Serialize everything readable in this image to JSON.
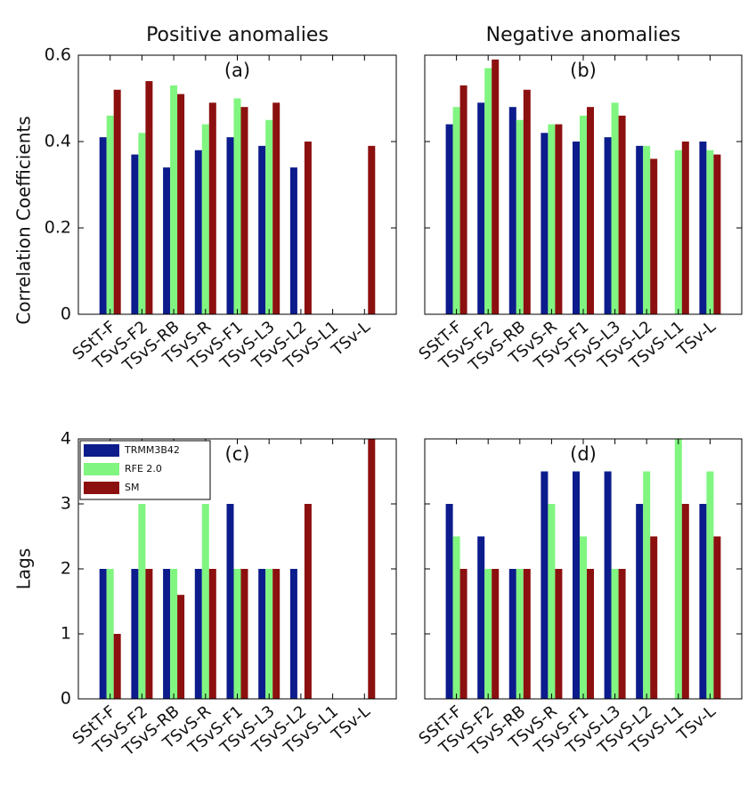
{
  "chart_data": [
    {
      "type": "bar",
      "title": "Positive anomalies",
      "ylabel": "Correlation Coefficients",
      "annotation": "(a)",
      "categories": [
        "SStT-F",
        "TSvS-F2",
        "TSvS-RB",
        "TSvS-R",
        "TSvS-F1",
        "TSvS-L3",
        "TSvS-L2",
        "TSvS-L1",
        "TSv-L"
      ],
      "series": [
        {
          "name": "TRMM3B42",
          "color": "#0c1c8c",
          "values": [
            0.41,
            0.37,
            0.34,
            0.38,
            0.41,
            0.39,
            0.34,
            null,
            null
          ]
        },
        {
          "name": "RFE 2.0",
          "color": "#80f580",
          "values": [
            0.46,
            0.42,
            0.53,
            0.44,
            0.5,
            0.45,
            null,
            null,
            null
          ]
        },
        {
          "name": "SM",
          "color": "#8c1010",
          "values": [
            0.52,
            0.54,
            0.51,
            0.49,
            0.48,
            0.49,
            0.4,
            null,
            0.39
          ]
        }
      ],
      "ylim": [
        0,
        0.6
      ],
      "yticks": [
        0,
        0.2,
        0.4,
        0.6
      ],
      "ytick_labels": true,
      "legend": false
    },
    {
      "type": "bar",
      "title": "Negative anomalies",
      "annotation": "(b)",
      "categories": [
        "SStT-F",
        "TSvS-F2",
        "TSvS-RB",
        "TSvS-R",
        "TSvS-F1",
        "TSvS-L3",
        "TSvS-L2",
        "TSvS-L1",
        "TSv-L"
      ],
      "series": [
        {
          "name": "TRMM3B42",
          "color": "#0c1c8c",
          "values": [
            0.44,
            0.49,
            0.48,
            0.42,
            0.4,
            0.41,
            0.39,
            null,
            0.4
          ]
        },
        {
          "name": "RFE 2.0",
          "color": "#80f580",
          "values": [
            0.48,
            0.57,
            0.45,
            0.44,
            0.46,
            0.49,
            0.39,
            0.38,
            0.38
          ]
        },
        {
          "name": "SM",
          "color": "#8c1010",
          "values": [
            0.53,
            0.59,
            0.52,
            0.44,
            0.48,
            0.46,
            0.36,
            0.4,
            0.37
          ]
        }
      ],
      "ylim": [
        0,
        0.6
      ],
      "yticks": [
        0,
        0.2,
        0.4,
        0.6
      ],
      "ytick_labels": false,
      "legend": false
    },
    {
      "type": "bar",
      "ylabel": "Lags",
      "annotation": "(c)",
      "categories": [
        "SStT-F",
        "TSvS-F2",
        "TSvS-RB",
        "TSvS-R",
        "TSvS-F1",
        "TSvS-L3",
        "TSvS-L2",
        "TSvS-L1",
        "TSv-L"
      ],
      "series": [
        {
          "name": "TRMM3B42",
          "color": "#0c1c8c",
          "values": [
            2,
            2,
            2,
            2,
            3,
            2,
            2,
            null,
            null
          ]
        },
        {
          "name": "RFE 2.0",
          "color": "#80f580",
          "values": [
            2,
            3,
            2,
            3,
            2,
            2,
            null,
            null,
            null
          ]
        },
        {
          "name": "SM",
          "color": "#8c1010",
          "values": [
            1,
            2,
            1.6,
            2,
            2,
            2,
            3,
            null,
            4
          ]
        }
      ],
      "ylim": [
        0,
        4
      ],
      "yticks": [
        0,
        1,
        2,
        3,
        4
      ],
      "ytick_labels": true,
      "legend": "upper left"
    },
    {
      "type": "bar",
      "annotation": "(d)",
      "categories": [
        "SStT-F",
        "TSvS-F2",
        "TSvS-RB",
        "TSvS-R",
        "TSvS-F1",
        "TSvS-L3",
        "TSvS-L2",
        "TSvS-L1",
        "TSv-L"
      ],
      "series": [
        {
          "name": "TRMM3B42",
          "color": "#0c1c8c",
          "values": [
            3,
            2.5,
            2,
            3.5,
            3.5,
            3.5,
            3,
            null,
            3
          ]
        },
        {
          "name": "RFE 2.0",
          "color": "#80f580",
          "values": [
            2.5,
            2,
            2,
            3,
            2.5,
            2,
            3.5,
            4,
            3.5
          ]
        },
        {
          "name": "SM",
          "color": "#8c1010",
          "values": [
            2,
            2,
            2,
            2,
            2,
            2,
            2.5,
            3,
            2.5
          ]
        }
      ],
      "ylim": [
        0,
        4
      ],
      "yticks": [
        0,
        1,
        2,
        3,
        4
      ],
      "ytick_labels": false,
      "legend": false
    }
  ]
}
